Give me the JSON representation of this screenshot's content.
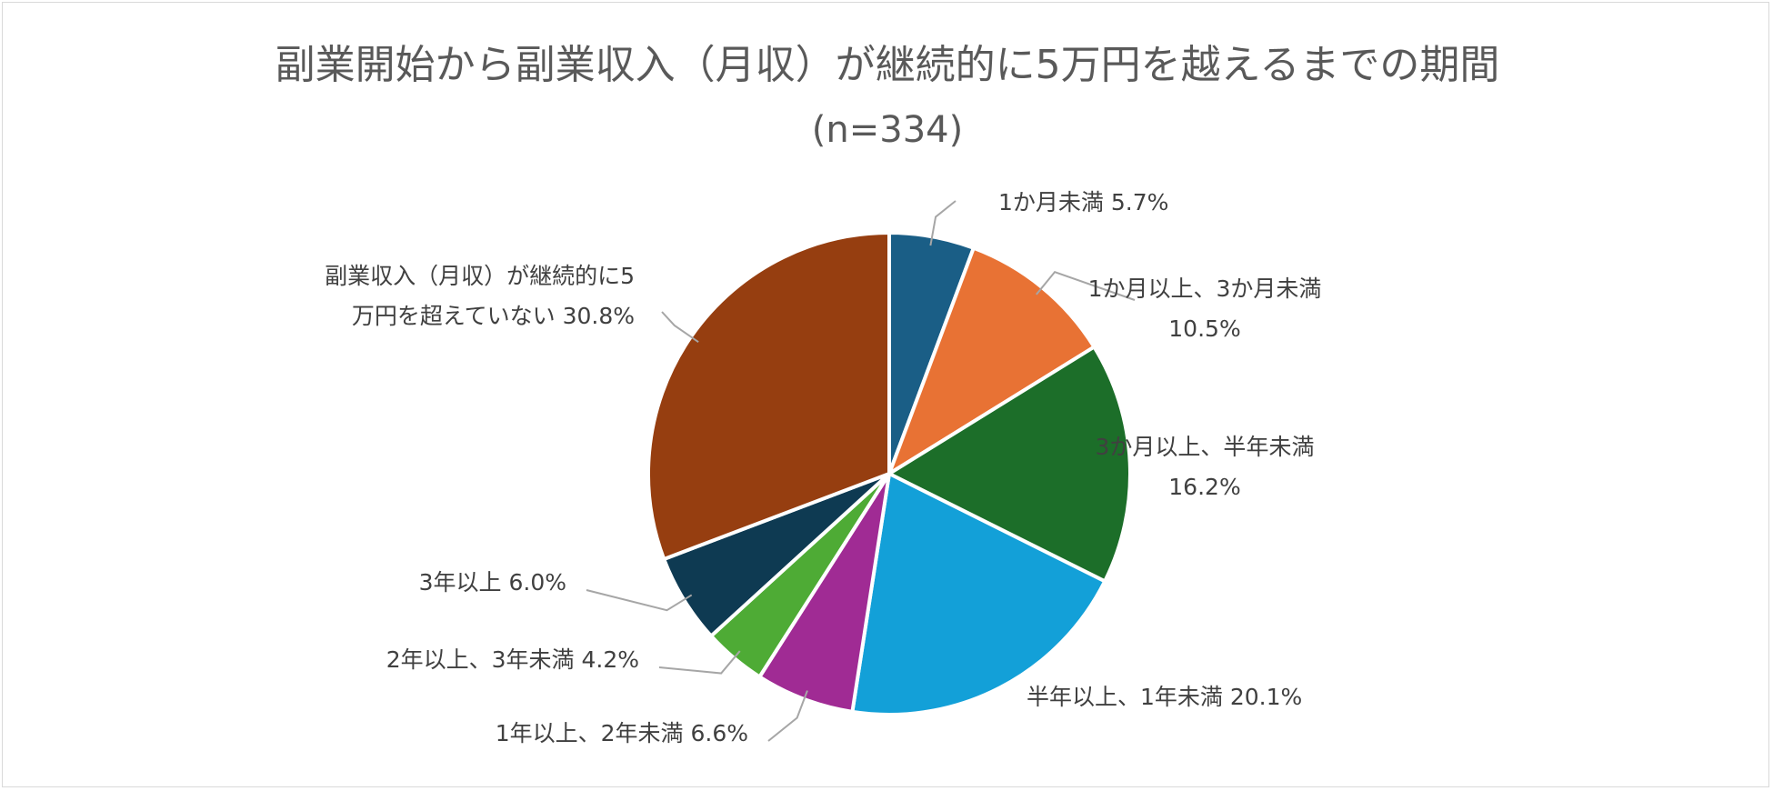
{
  "chart_data": {
    "type": "pie",
    "title": "副業開始から副業収入（月収）が継続的に5万円を越えるまでの期間",
    "subtitle": "(n=334)",
    "slices": [
      {
        "label": "1か月未満 5.7%",
        "value": 5.7,
        "color": "#1a5e86"
      },
      {
        "label": "1か月以上、3か月未満\n10.5%",
        "value": 10.5,
        "color": "#e87234"
      },
      {
        "label": "3か月以上、半年未満\n16.2%",
        "value": 16.2,
        "color": "#1c6e29"
      },
      {
        "label": "半年以上、1年未満 20.1%",
        "value": 20.1,
        "color": "#13a0d8"
      },
      {
        "label": "1年以上、2年未満 6.6%",
        "value": 6.6,
        "color": "#a02b94"
      },
      {
        "label": "2年以上、3年未満 4.2%",
        "value": 4.2,
        "color": "#4eab35"
      },
      {
        "label": "3年以上 6.0%",
        "value": 6.0,
        "color": "#0e3a52"
      },
      {
        "label": "副業収入（月収）が継続的に5\n万円を超えていない 30.8%",
        "value": 30.8,
        "color": "#963e10"
      }
    ]
  }
}
